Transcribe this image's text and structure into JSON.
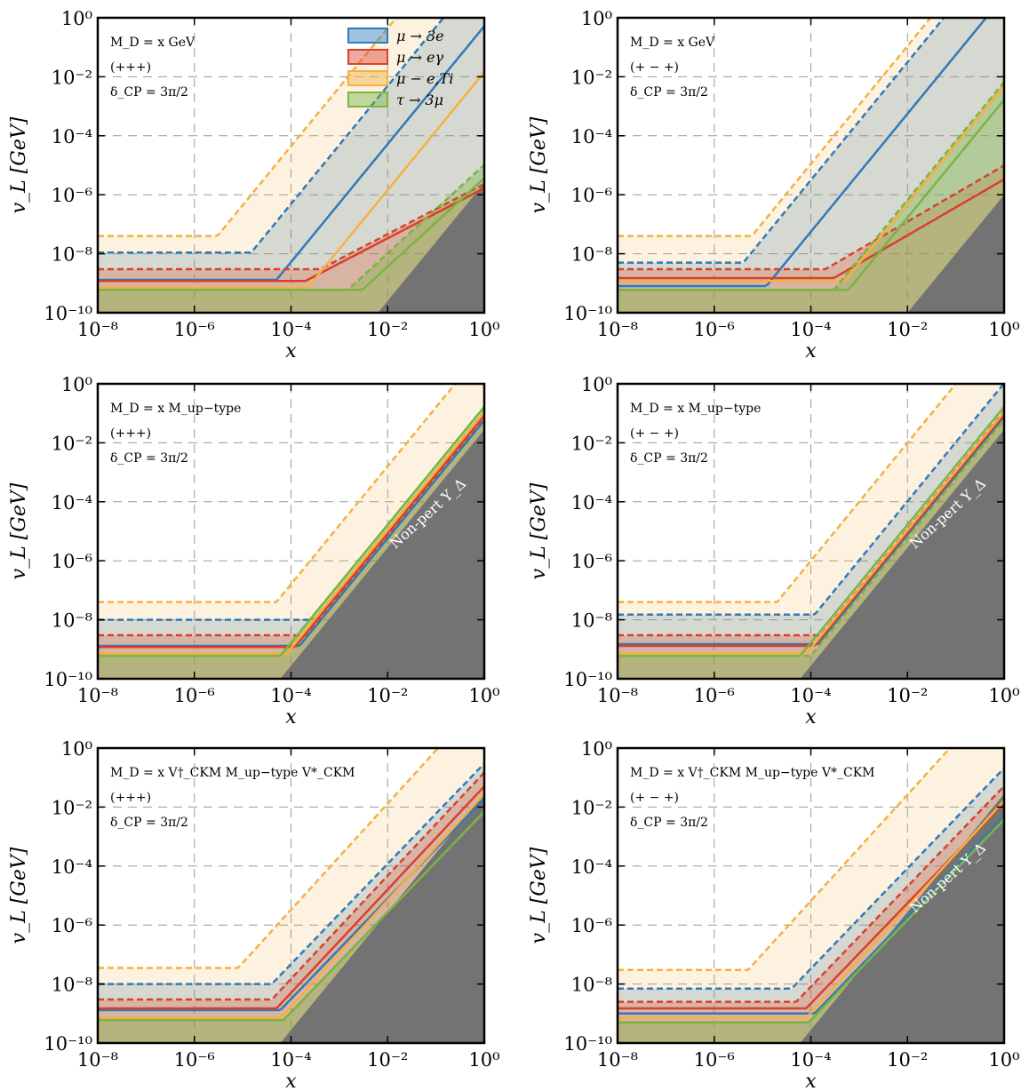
{
  "chart_data": [
    {
      "type": "area",
      "xscale": "log",
      "yscale": "log",
      "xlim": [
        1e-08,
        1
      ],
      "ylim": [
        1e-10,
        1
      ],
      "grid": true,
      "xlabel": "x",
      "ylabel": "v_L [GeV]",
      "annotations": [
        "M_D = x GeV",
        "(+++)",
        "δ_CP = 3π/2"
      ],
      "nonpert_label": "",
      "legend": {
        "placement": "top",
        "entries": [
          "μ → 3e",
          "μ → eγ",
          "μ − e,Ti",
          "τ → 3μ"
        ]
      },
      "nonpert_region": {
        "x_start": 0.0063
      },
      "series": [
        {
          "name": "μ → 3e",
          "solid_plateau": 1.3e-09,
          "solid_knee": 5e-05,
          "dashed_plateau": 1.1e-08,
          "dashed_knee": 1.5e-05,
          "slope": 2
        },
        {
          "name": "μ → eγ",
          "solid_plateau": 1.2e-09,
          "solid_knee": 0.0002,
          "dashed_plateau": 3e-09,
          "dashed_knee": 0.0004,
          "slope": 0.85
        },
        {
          "name": "μ − e,Ti",
          "solid_plateau": 7e-10,
          "solid_knee": 0.00022,
          "dashed_plateau": 4e-08,
          "dashed_knee": 3e-06,
          "slope": 2
        },
        {
          "name": "τ → 3μ",
          "solid_plateau": 6e-10,
          "solid_knee": 0.003,
          "dashed_plateau": 6e-10,
          "dashed_knee": 0.0015,
          "slope": 1.5
        }
      ]
    },
    {
      "type": "area",
      "xscale": "log",
      "yscale": "log",
      "xlim": [
        1e-08,
        1
      ],
      "ylim": [
        1e-10,
        1
      ],
      "grid": true,
      "xlabel": "x",
      "ylabel": "v_L [GeV]",
      "annotations": [
        "M_D = x GeV",
        "(+ − +)",
        "δ_CP = 3π/2"
      ],
      "nonpert_label": "",
      "nonpert_region": {
        "x_start": 0.01
      },
      "series": [
        {
          "name": "μ → 3e",
          "solid_plateau": 8e-10,
          "solid_knee": 1.2e-05,
          "dashed_plateau": 5e-09,
          "dashed_knee": 4e-06,
          "slope": 2
        },
        {
          "name": "μ → eγ",
          "solid_plateau": 1.5e-09,
          "solid_knee": 0.0003,
          "dashed_plateau": 3e-09,
          "dashed_knee": 0.0002,
          "slope": 0.95
        },
        {
          "name": "μ − e,Ti",
          "solid_plateau": 1.2e-09,
          "solid_knee": 0.0005,
          "dashed_plateau": 4e-08,
          "dashed_knee": 6e-06,
          "slope": 2
        },
        {
          "name": "τ → 3μ",
          "solid_plateau": 6e-10,
          "solid_knee": 0.0006,
          "dashed_plateau": 6e-10,
          "dashed_knee": 0.0003,
          "slope": 2
        }
      ]
    },
    {
      "type": "area",
      "xscale": "log",
      "yscale": "log",
      "xlim": [
        1e-08,
        1
      ],
      "ylim": [
        1e-10,
        1
      ],
      "grid": true,
      "xlabel": "x",
      "ylabel": "v_L [GeV]",
      "annotations": [
        "M_D = x M_up−type",
        "(+++)",
        "δ_CP = 3π/2"
      ],
      "nonpert_label": "Non-pert Y_Δ",
      "nonpert_region": {
        "x_start": 6e-05
      },
      "series": [
        {
          "name": "μ → 3e",
          "solid_plateau": 1.3e-09,
          "solid_knee": 0.00015,
          "dashed_plateau": 1e-08,
          "dashed_knee": 0.0003,
          "slope": 2
        },
        {
          "name": "μ → eγ",
          "solid_plateau": 1.2e-09,
          "solid_knee": 0.00012,
          "dashed_plateau": 3e-09,
          "dashed_knee": 0.0002,
          "slope": 2
        },
        {
          "name": "μ − e,Ti",
          "solid_plateau": 7e-10,
          "solid_knee": 8e-05,
          "dashed_plateau": 4e-08,
          "dashed_knee": 5e-05,
          "slope": 2
        },
        {
          "name": "τ → 3μ",
          "solid_plateau": 6e-10,
          "solid_knee": 6e-05,
          "dashed_plateau": 6e-10,
          "dashed_knee": 6e-05,
          "slope": 2
        }
      ]
    },
    {
      "type": "area",
      "xscale": "log",
      "yscale": "log",
      "xlim": [
        1e-08,
        1
      ],
      "ylim": [
        1e-10,
        1
      ],
      "grid": true,
      "xlabel": "x",
      "ylabel": "v_L [GeV]",
      "annotations": [
        "M_D = x M_up−type",
        "(+ − +)",
        "δ_CP = 3π/2"
      ],
      "nonpert_label": "Non-pert Y_Δ",
      "nonpert_region": {
        "x_start": 6e-05
      },
      "series": [
        {
          "name": "μ → 3e",
          "solid_plateau": 1.5e-09,
          "solid_knee": 0.00014,
          "dashed_plateau": 1.5e-08,
          "dashed_knee": 0.00012,
          "slope": 2
        },
        {
          "name": "μ → eγ",
          "solid_plateau": 1.3e-09,
          "solid_knee": 0.00012,
          "dashed_plateau": 3e-09,
          "dashed_knee": 0.00016,
          "slope": 2
        },
        {
          "name": "μ − e,Ti",
          "solid_plateau": 7e-10,
          "solid_knee": 8e-05,
          "dashed_plateau": 4e-08,
          "dashed_knee": 2e-05,
          "slope": 2
        },
        {
          "name": "τ → 3μ",
          "solid_plateau": 6e-10,
          "solid_knee": 6e-05,
          "dashed_plateau": 6e-10,
          "dashed_knee": 0.0001,
          "slope": 2
        }
      ]
    },
    {
      "type": "area",
      "xscale": "log",
      "yscale": "log",
      "xlim": [
        1e-08,
        1
      ],
      "ylim": [
        1e-10,
        1
      ],
      "grid": true,
      "xlabel": "x",
      "ylabel": "v_L [GeV]",
      "annotations": [
        "M_D = x V†_CKM M_up−type V*_CKM",
        "(+++)",
        "δ_CP = 3π/2"
      ],
      "nonpert_label": "",
      "nonpert_region": {
        "x_start": 6e-05
      },
      "series": [
        {
          "name": "μ → 3e",
          "solid_plateau": 1.3e-09,
          "solid_knee": 6e-05,
          "dashed_plateau": 1e-08,
          "dashed_knee": 4e-05,
          "slope": 1.7
        },
        {
          "name": "μ → eγ",
          "solid_plateau": 1.5e-09,
          "solid_knee": 5e-05,
          "dashed_plateau": 3e-09,
          "dashed_knee": 4e-05,
          "slope": 1.75
        },
        {
          "name": "μ − e,Ti",
          "solid_plateau": 7e-10,
          "solid_knee": 6e-05,
          "dashed_plateau": 3.5e-08,
          "dashed_knee": 8e-06,
          "slope": 1.8
        },
        {
          "name": "τ → 3μ",
          "solid_plateau": 6e-10,
          "solid_knee": 7e-05,
          "dashed_plateau": 6e-10,
          "dashed_knee": 7e-05,
          "slope": 1.7
        }
      ]
    },
    {
      "type": "area",
      "xscale": "log",
      "yscale": "log",
      "xlim": [
        1e-08,
        1
      ],
      "ylim": [
        1e-10,
        1
      ],
      "grid": true,
      "xlabel": "x",
      "ylabel": "v_L [GeV]",
      "annotations": [
        "M_D = x V†_CKM M_up−type V*_CKM",
        "(+ − +)",
        "δ_CP = 3π/2"
      ],
      "nonpert_label": "Non-pert Y_Δ",
      "nonpert_region": {
        "x_start": 6e-05
      },
      "series": [
        {
          "name": "μ → 3e",
          "solid_plateau": 1e-09,
          "solid_knee": 0.00012,
          "dashed_plateau": 7e-09,
          "dashed_knee": 4e-05,
          "slope": 1.7
        },
        {
          "name": "μ → eγ",
          "solid_plateau": 1.5e-09,
          "solid_knee": 8e-05,
          "dashed_plateau": 2.5e-09,
          "dashed_knee": 5e-05,
          "slope": 1.7
        },
        {
          "name": "μ − e,Ti",
          "solid_plateau": 7e-10,
          "solid_knee": 8e-05,
          "dashed_plateau": 3e-08,
          "dashed_knee": 5e-06,
          "slope": 1.8
        },
        {
          "name": "τ → 3μ",
          "solid_plateau": 5e-10,
          "solid_knee": 9e-05,
          "dashed_plateau": 5e-10,
          "dashed_knee": 9e-05,
          "slope": 1.7
        }
      ]
    }
  ],
  "tick_labels": {
    "x": [
      "10⁻⁸",
      "10⁻⁶",
      "10⁻⁴",
      "10⁻²",
      "10⁰"
    ],
    "y": [
      "10⁻¹⁰",
      "10⁻⁸",
      "10⁻⁶",
      "10⁻⁴",
      "10⁻²",
      "10⁰"
    ]
  },
  "colors": {
    "μ → 3e": "#2f7ab8",
    "μ → eγ": "#d9402c",
    "μ − e,Ti": "#f5b041",
    "τ → 3μ": "#7cb342",
    "nonpert": "#737373",
    "grid": "#999999"
  }
}
